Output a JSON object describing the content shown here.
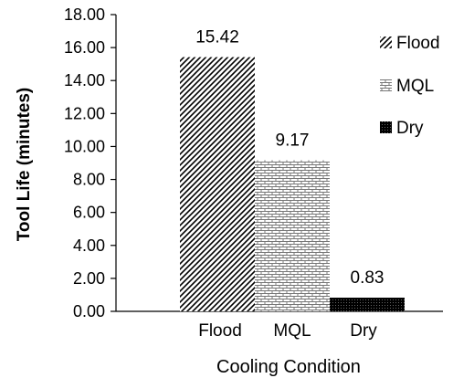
{
  "chart_data": {
    "type": "bar",
    "categories": [
      "Flood",
      "MQL",
      "Dry"
    ],
    "series": [
      {
        "name": "Flood",
        "values": [
          15.42,
          null,
          null
        ]
      },
      {
        "name": "MQL",
        "values": [
          null,
          9.17,
          null
        ]
      },
      {
        "name": "Dry",
        "values": [
          null,
          null,
          0.83
        ]
      }
    ],
    "values": [
      15.42,
      9.17,
      0.83
    ],
    "data_labels": [
      "15.42",
      "9.17",
      "0.83"
    ],
    "xlabel": "Cooling Condition",
    "ylabel": "Tool Life (minutes)",
    "ylim": [
      0,
      18
    ],
    "yticks": [
      "0.00",
      "2.00",
      "4.00",
      "6.00",
      "8.00",
      "10.00",
      "12.00",
      "14.00",
      "16.00",
      "18.00"
    ],
    "legend": {
      "placement": "right",
      "entries": [
        "Flood",
        "MQL",
        "Dry"
      ]
    },
    "patterns": [
      "diagonal-hatch",
      "brick",
      "dense-dots"
    ],
    "grid": false
  }
}
